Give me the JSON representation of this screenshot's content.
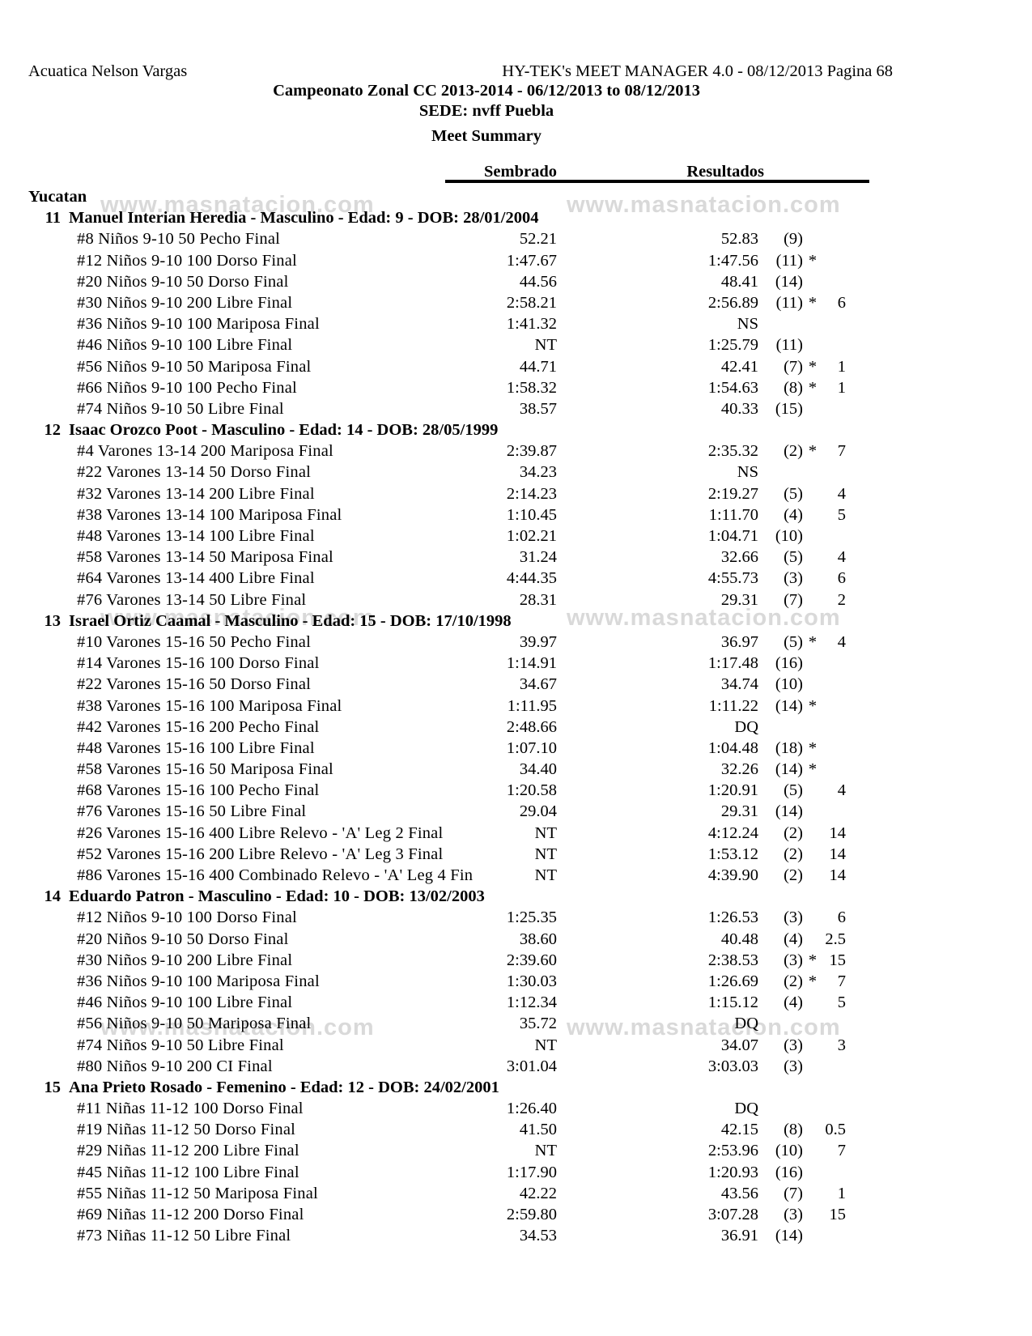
{
  "page": {
    "header_left": "Acuatica Nelson Vargas",
    "header_right": "HY-TEK's MEET MANAGER 4.0 - 08/12/2013  Pagina 68",
    "title": "Campeonato Zonal CC 2013-2014 - 06/12/2013 to 08/12/2013",
    "venue": "SEDE: nvff Puebla",
    "report_title": "Meet Summary",
    "watermark": "www.masnatacion.com",
    "text_color": "#000000",
    "watermark_color": "#d9d9d9"
  },
  "columns": {
    "seed": "Sembrado",
    "results": "Resultados"
  },
  "team": "Yucatan",
  "swimmers": [
    {
      "number": "11",
      "header": "Manuel Interian Heredia - Masculino - Edad: 9 - DOB: 28/01/2004",
      "events": [
        {
          "name": "#8 Niños 9-10 50 Pecho Final",
          "seed": "52.21",
          "result": "52.83",
          "place": "(9)",
          "star": "",
          "pts": ""
        },
        {
          "name": "#12 Niños 9-10 100 Dorso Final",
          "seed": "1:47.67",
          "result": "1:47.56",
          "place": "(11)",
          "star": "*",
          "pts": ""
        },
        {
          "name": "#20 Niños 9-10 50 Dorso Final",
          "seed": "44.56",
          "result": "48.41",
          "place": "(14)",
          "star": "",
          "pts": ""
        },
        {
          "name": "#30 Niños 9-10 200 Libre Final",
          "seed": "2:58.21",
          "result": "2:56.89",
          "place": "(11)",
          "star": "*",
          "pts": "6"
        },
        {
          "name": "#36 Niños 9-10 100 Mariposa Final",
          "seed": "1:41.32",
          "result": "NS",
          "place": "",
          "star": "",
          "pts": ""
        },
        {
          "name": "#46 Niños 9-10 100 Libre Final",
          "seed": "NT",
          "result": "1:25.79",
          "place": "(11)",
          "star": "",
          "pts": ""
        },
        {
          "name": "#56 Niños 9-10 50 Mariposa Final",
          "seed": "44.71",
          "result": "42.41",
          "place": "(7)",
          "star": "*",
          "pts": "1"
        },
        {
          "name": "#66 Niños 9-10 100 Pecho Final",
          "seed": "1:58.32",
          "result": "1:54.63",
          "place": "(8)",
          "star": "*",
          "pts": "1"
        },
        {
          "name": "#74 Niños 9-10 50 Libre Final",
          "seed": "38.57",
          "result": "40.33",
          "place": "(15)",
          "star": "",
          "pts": ""
        }
      ]
    },
    {
      "number": "12",
      "header": "Isaac Orozco Poot - Masculino - Edad: 14 - DOB: 28/05/1999",
      "events": [
        {
          "name": "#4 Varones 13-14 200 Mariposa Final",
          "seed": "2:39.87",
          "result": "2:35.32",
          "place": "(2)",
          "star": "*",
          "pts": "7"
        },
        {
          "name": "#22 Varones 13-14 50 Dorso Final",
          "seed": "34.23",
          "result": "NS",
          "place": "",
          "star": "",
          "pts": ""
        },
        {
          "name": "#32 Varones 13-14 200 Libre Final",
          "seed": "2:14.23",
          "result": "2:19.27",
          "place": "(5)",
          "star": "",
          "pts": "4"
        },
        {
          "name": "#38 Varones 13-14 100 Mariposa Final",
          "seed": "1:10.45",
          "result": "1:11.70",
          "place": "(4)",
          "star": "",
          "pts": "5"
        },
        {
          "name": "#48 Varones 13-14 100 Libre Final",
          "seed": "1:02.21",
          "result": "1:04.71",
          "place": "(10)",
          "star": "",
          "pts": ""
        },
        {
          "name": "#58 Varones 13-14 50 Mariposa Final",
          "seed": "31.24",
          "result": "32.66",
          "place": "(5)",
          "star": "",
          "pts": "4"
        },
        {
          "name": "#64 Varones 13-14 400 Libre Final",
          "seed": "4:44.35",
          "result": "4:55.73",
          "place": "(3)",
          "star": "",
          "pts": "6"
        },
        {
          "name": "#76 Varones 13-14 50 Libre Final",
          "seed": "28.31",
          "result": "29.31",
          "place": "(7)",
          "star": "",
          "pts": "2"
        }
      ]
    },
    {
      "number": "13",
      "header": "Israel Ortiz Caamal - Masculino - Edad: 15 - DOB: 17/10/1998",
      "events": [
        {
          "name": "#10 Varones 15-16 50 Pecho Final",
          "seed": "39.97",
          "result": "36.97",
          "place": "(5)",
          "star": "*",
          "pts": "4"
        },
        {
          "name": "#14 Varones 15-16 100 Dorso Final",
          "seed": "1:14.91",
          "result": "1:17.48",
          "place": "(16)",
          "star": "",
          "pts": ""
        },
        {
          "name": "#22 Varones 15-16 50 Dorso Final",
          "seed": "34.67",
          "result": "34.74",
          "place": "(10)",
          "star": "",
          "pts": ""
        },
        {
          "name": "#38 Varones 15-16 100 Mariposa Final",
          "seed": "1:11.95",
          "result": "1:11.22",
          "place": "(14)",
          "star": "*",
          "pts": ""
        },
        {
          "name": "#42 Varones 15-16 200 Pecho Final",
          "seed": "2:48.66",
          "result": "DQ",
          "place": "",
          "star": "",
          "pts": ""
        },
        {
          "name": "#48 Varones 15-16 100 Libre Final",
          "seed": "1:07.10",
          "result": "1:04.48",
          "place": "(18)",
          "star": "*",
          "pts": ""
        },
        {
          "name": "#58 Varones 15-16 50 Mariposa Final",
          "seed": "34.40",
          "result": "32.26",
          "place": "(14)",
          "star": "*",
          "pts": ""
        },
        {
          "name": "#68 Varones 15-16 100 Pecho Final",
          "seed": "1:20.58",
          "result": "1:20.91",
          "place": "(5)",
          "star": "",
          "pts": "4"
        },
        {
          "name": "#76 Varones 15-16 50 Libre Final",
          "seed": "29.04",
          "result": "29.31",
          "place": "(14)",
          "star": "",
          "pts": ""
        },
        {
          "name": "#26 Varones 15-16 400 Libre Relevo - 'A' Leg 2 Final",
          "seed": "NT",
          "result": "4:12.24",
          "place": "(2)",
          "star": "",
          "pts": "14"
        },
        {
          "name": "#52 Varones 15-16 200 Libre Relevo - 'A' Leg 3 Final",
          "seed": "NT",
          "result": "1:53.12",
          "place": "(2)",
          "star": "",
          "pts": "14"
        },
        {
          "name": "#86 Varones 15-16 400 Combinado Relevo - 'A' Leg 4 Fin",
          "seed": "NT",
          "result": "4:39.90",
          "place": "(2)",
          "star": "",
          "pts": "14"
        }
      ]
    },
    {
      "number": "14",
      "header": "Eduardo Patron - Masculino - Edad: 10 - DOB: 13/02/2003",
      "events": [
        {
          "name": "#12 Niños 9-10 100 Dorso Final",
          "seed": "1:25.35",
          "result": "1:26.53",
          "place": "(3)",
          "star": "",
          "pts": "6"
        },
        {
          "name": "#20 Niños 9-10 50 Dorso Final",
          "seed": "38.60",
          "result": "40.48",
          "place": "(4)",
          "star": "",
          "pts": "2.5"
        },
        {
          "name": "#30 Niños 9-10 200 Libre Final",
          "seed": "2:39.60",
          "result": "2:38.53",
          "place": "(3)",
          "star": "*",
          "pts": "15"
        },
        {
          "name": "#36 Niños 9-10 100 Mariposa Final",
          "seed": "1:30.03",
          "result": "1:26.69",
          "place": "(2)",
          "star": "*",
          "pts": "7"
        },
        {
          "name": "#46 Niños 9-10 100 Libre Final",
          "seed": "1:12.34",
          "result": "1:15.12",
          "place": "(4)",
          "star": "",
          "pts": "5"
        },
        {
          "name": "#56 Niños 9-10 50 Mariposa Final",
          "seed": "35.72",
          "result": "DQ",
          "place": "",
          "star": "",
          "pts": ""
        },
        {
          "name": "#74 Niños 9-10 50 Libre Final",
          "seed": "NT",
          "result": "34.07",
          "place": "(3)",
          "star": "",
          "pts": "3"
        },
        {
          "name": "#80 Niños 9-10 200 CI Final",
          "seed": "3:01.04",
          "result": "3:03.03",
          "place": "(3)",
          "star": "",
          "pts": ""
        }
      ]
    },
    {
      "number": "15",
      "header": "Ana Prieto Rosado - Femenino - Edad: 12 - DOB: 24/02/2001",
      "events": [
        {
          "name": "#11 Niñas 11-12 100 Dorso Final",
          "seed": "1:26.40",
          "result": "DQ",
          "place": "",
          "star": "",
          "pts": ""
        },
        {
          "name": "#19 Niñas 11-12 50 Dorso Final",
          "seed": "41.50",
          "result": "42.15",
          "place": "(8)",
          "star": "",
          "pts": "0.5"
        },
        {
          "name": "#29 Niñas 11-12 200 Libre Final",
          "seed": "NT",
          "result": "2:53.96",
          "place": "(10)",
          "star": "",
          "pts": "7"
        },
        {
          "name": "#45 Niñas 11-12 100 Libre Final",
          "seed": "1:17.90",
          "result": "1:20.93",
          "place": "(16)",
          "star": "",
          "pts": ""
        },
        {
          "name": "#55 Niñas 11-12 50 Mariposa Final",
          "seed": "42.22",
          "result": "43.56",
          "place": "(7)",
          "star": "",
          "pts": "1"
        },
        {
          "name": "#69 Niñas 11-12 200 Dorso Final",
          "seed": "2:59.80",
          "result": "3:07.28",
          "place": "(3)",
          "star": "",
          "pts": "15"
        },
        {
          "name": "#73 Niñas 11-12 50 Libre Final",
          "seed": "34.53",
          "result": "36.91",
          "place": "(14)",
          "star": "",
          "pts": ""
        }
      ]
    }
  ]
}
